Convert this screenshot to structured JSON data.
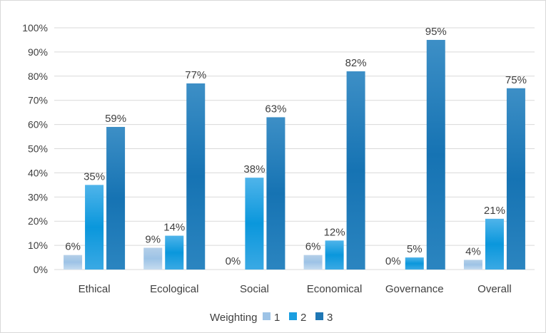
{
  "chart_data": {
    "type": "bar",
    "categories": [
      "Ethical",
      "Ecological",
      "Social",
      "Economical",
      "Governance",
      "Overall"
    ],
    "series": [
      {
        "name": "1",
        "values": [
          6,
          9,
          0,
          6,
          0,
          4
        ],
        "labels": [
          "6%",
          "9%",
          "0%",
          "6%",
          "0%",
          "4%"
        ],
        "color": "#9dc3e6"
      },
      {
        "name": "2",
        "values": [
          35,
          14,
          38,
          12,
          5,
          21
        ],
        "labels": [
          "35%",
          "14%",
          "38%",
          "12%",
          "5%",
          "21%"
        ],
        "color": "#1a9ee0"
      },
      {
        "name": "3",
        "values": [
          59,
          77,
          63,
          82,
          95,
          75
        ],
        "labels": [
          "59%",
          "77%",
          "63%",
          "82%",
          "95%",
          "75%"
        ],
        "color": "#1f77b4"
      }
    ],
    "y_ticks": [
      "0%",
      "10%",
      "20%",
      "30%",
      "40%",
      "50%",
      "60%",
      "70%",
      "80%",
      "90%",
      "100%"
    ],
    "ylim": [
      0,
      100
    ],
    "grid": true,
    "legend": {
      "title": "Weighting",
      "position": "bottom"
    }
  }
}
